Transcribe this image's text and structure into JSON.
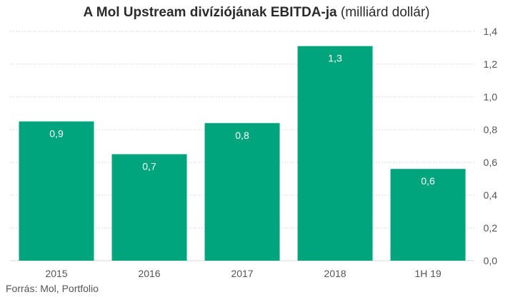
{
  "title": {
    "bold": "A Mol Upstream divíziójának EBITDA-ja",
    "normal": "(milliárd dollár)"
  },
  "source": "Forrás: Mol, Portfolio",
  "colors": {
    "bar": "#00a57e",
    "grid": "#d9d9d9",
    "axis_text": "#555555",
    "label_text": "#ffffff"
  },
  "chart_data": {
    "type": "bar",
    "categories": [
      "2015",
      "2016",
      "2017",
      "2018",
      "1H 19"
    ],
    "values": [
      0.85,
      0.65,
      0.84,
      1.31,
      0.56
    ],
    "data_labels": [
      "0,9",
      "0,7",
      "0,8",
      "1,3",
      "0,6"
    ],
    "y_ticks": [
      "0,0",
      "0,2",
      "0,4",
      "0,6",
      "0,8",
      "1,0",
      "1,2",
      "1,4"
    ],
    "ylim": [
      0,
      1.4
    ],
    "y_axis_side": "right",
    "grid": true,
    "xlabel": "",
    "ylabel": ""
  }
}
